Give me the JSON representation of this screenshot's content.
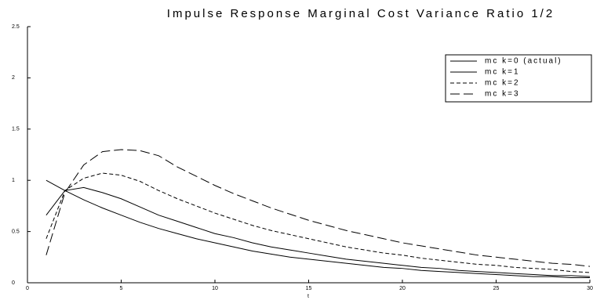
{
  "chart_data": {
    "type": "line",
    "title": "Impulse Response Marginal Cost Variance Ratio 1/2",
    "x_label": "t",
    "x": [
      1,
      2,
      3,
      4,
      5,
      6,
      7,
      8,
      9,
      10,
      11,
      12,
      13,
      14,
      15,
      16,
      17,
      18,
      19,
      20,
      21,
      22,
      23,
      24,
      25,
      26,
      27,
      28,
      29,
      30
    ],
    "series": [
      {
        "name": "mc k=0 (actual)",
        "color": "#000000",
        "dash": "solid",
        "values": [
          1.0,
          0.9,
          0.81,
          0.73,
          0.66,
          0.59,
          0.53,
          0.48,
          0.43,
          0.39,
          0.35,
          0.31,
          0.28,
          0.25,
          0.23,
          0.21,
          0.19,
          0.17,
          0.15,
          0.14,
          0.12,
          0.11,
          0.1,
          0.09,
          0.08,
          0.07,
          0.06,
          0.06,
          0.05,
          0.05
        ]
      },
      {
        "name": "mc k=1",
        "color": "#000000",
        "dash": "solid",
        "values": [
          0.66,
          0.9,
          0.93,
          0.88,
          0.82,
          0.74,
          0.66,
          0.6,
          0.54,
          0.48,
          0.44,
          0.39,
          0.35,
          0.32,
          0.29,
          0.26,
          0.23,
          0.21,
          0.19,
          0.17,
          0.15,
          0.14,
          0.12,
          0.11,
          0.1,
          0.09,
          0.08,
          0.07,
          0.07,
          0.06
        ]
      },
      {
        "name": "mc k=2",
        "color": "#000000",
        "dash": "short",
        "values": [
          0.43,
          0.9,
          1.02,
          1.07,
          1.05,
          0.99,
          0.9,
          0.82,
          0.75,
          0.68,
          0.62,
          0.56,
          0.51,
          0.47,
          0.43,
          0.39,
          0.35,
          0.32,
          0.29,
          0.27,
          0.24,
          0.22,
          0.2,
          0.18,
          0.17,
          0.15,
          0.14,
          0.13,
          0.11,
          0.1
        ]
      },
      {
        "name": "mc k=3",
        "color": "#000000",
        "dash": "long",
        "values": [
          0.27,
          0.88,
          1.15,
          1.28,
          1.3,
          1.29,
          1.24,
          1.13,
          1.04,
          0.95,
          0.87,
          0.8,
          0.73,
          0.67,
          0.61,
          0.56,
          0.51,
          0.47,
          0.43,
          0.39,
          0.36,
          0.33,
          0.3,
          0.27,
          0.25,
          0.23,
          0.21,
          0.19,
          0.18,
          0.16
        ]
      }
    ],
    "xlim": [
      0,
      30
    ],
    "ylim": [
      0,
      2.5
    ],
    "xticks": [
      0,
      5,
      10,
      15,
      20,
      25,
      30
    ],
    "yticks": [
      0,
      0.5,
      1,
      1.5,
      2,
      2.5
    ],
    "grid": false,
    "legend": "top-right"
  }
}
